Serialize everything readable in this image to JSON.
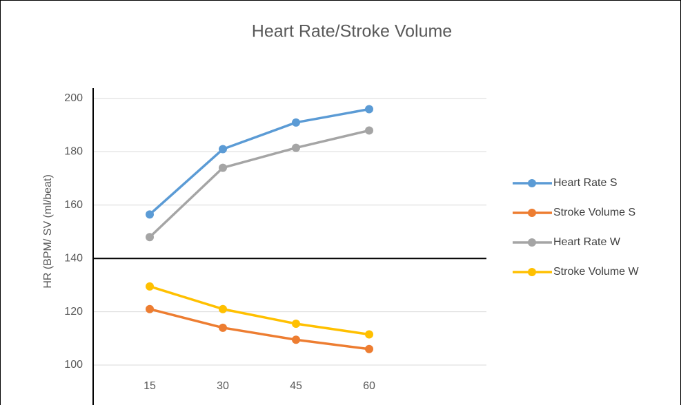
{
  "chart_data": {
    "type": "line",
    "title": "Heart Rate/Stroke Volume",
    "y_label": "HR (BPM/ SV (ml/beat)",
    "categories": [
      "15",
      "30",
      "45",
      "60"
    ],
    "series": [
      {
        "name": "Heart Rate S",
        "color": "#5b9bd5",
        "values": [
          156.5,
          181,
          191,
          196
        ]
      },
      {
        "name": "Stroke Volume S",
        "color": "#ed7d31",
        "values": [
          121,
          114,
          109.5,
          106
        ]
      },
      {
        "name": "Heart Rate W",
        "color": "#a5a5a5",
        "values": [
          148,
          174,
          181.5,
          188
        ]
      },
      {
        "name": "Stroke Volume W",
        "color": "#ffc000",
        "values": [
          129.5,
          121,
          115.5,
          111.5
        ]
      }
    ],
    "ylim": [
      100,
      200
    ],
    "yticks": [
      100,
      120,
      140,
      160,
      180,
      200
    ],
    "grid": true,
    "legend": "right"
  }
}
